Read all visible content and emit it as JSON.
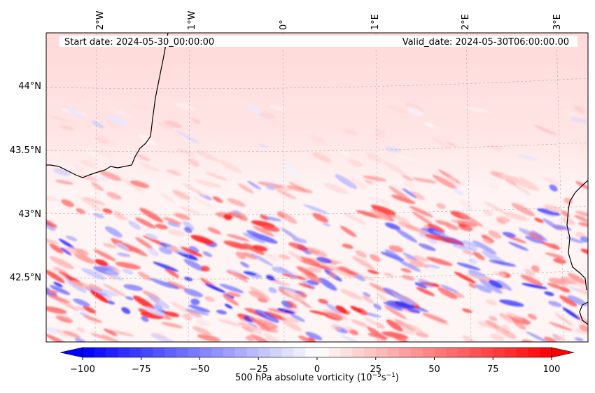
{
  "map": {
    "start_label": "Start date: 2024-05-30_00:00:00",
    "valid_label": "Valid_date: 2024-05-30T06:00:00.00",
    "lon_ticks": [
      "2°W",
      "1°W",
      "0°",
      "1°E",
      "2°E",
      "3°E"
    ],
    "lat_ticks": [
      "44°N",
      "43.5°N",
      "43°N",
      "42.5°N"
    ],
    "field": "500 hPa absolute vorticity",
    "colormap": "bwr",
    "colors": {
      "negative": "#0000ff",
      "zero": "#ffffff",
      "positive": "#ff0000",
      "coastline": "#000000",
      "grid": "#b0b0b0"
    }
  },
  "colorbar": {
    "label_main": "500 hPa absolute vorticity (10",
    "label_exp1": "−5",
    "label_mid": "s",
    "label_exp2": "−1",
    "label_end": ")",
    "range": [
      -100,
      100
    ],
    "ticks": [
      "−100",
      "−75",
      "−50",
      "−25",
      "0",
      "25",
      "50",
      "75",
      "100"
    ]
  }
}
